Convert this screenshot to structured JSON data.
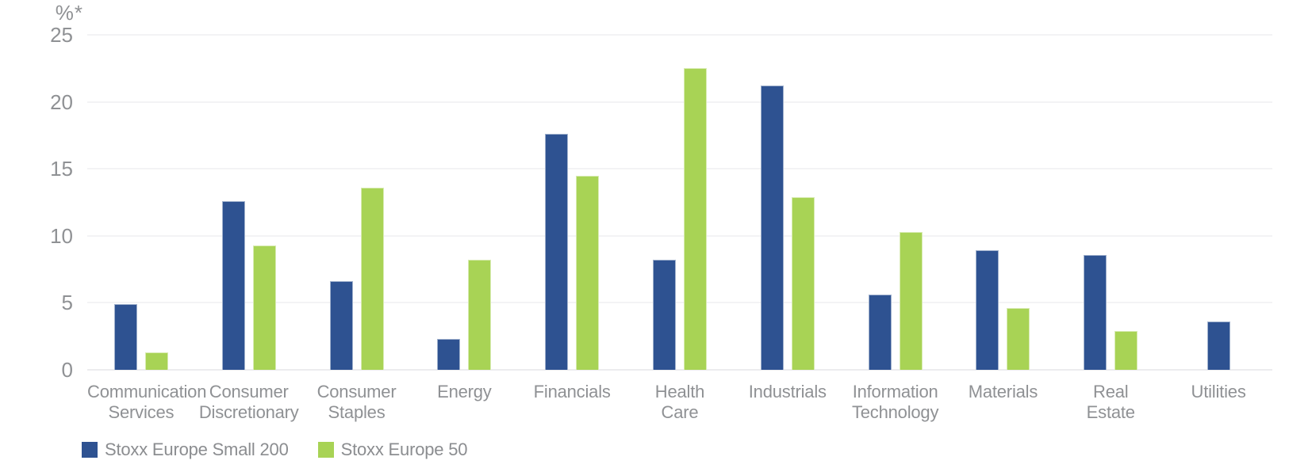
{
  "chart_data": {
    "type": "bar",
    "title": "",
    "unit_label": "%*",
    "ylabel": "",
    "xlabel": "",
    "ylim": [
      0,
      25
    ],
    "y_ticks": [
      0,
      5,
      10,
      15,
      20,
      25
    ],
    "grid": true,
    "legend_position": "bottom-left",
    "categories": [
      "Communication Services",
      "Consumer Discretionary",
      "Consumer Staples",
      "Energy",
      "Financials",
      "Health Care",
      "Industrials",
      "Information Technology",
      "Materials",
      "Real Estate",
      "Utilities"
    ],
    "category_label_lines": [
      [
        "Communication",
        "Services"
      ],
      [
        "Consumer",
        "Discretionary"
      ],
      [
        "Consumer",
        "Staples"
      ],
      [
        "Energy"
      ],
      [
        "Financials"
      ],
      [
        "Health",
        "Care"
      ],
      [
        "Industrials"
      ],
      [
        "Information",
        "Technology"
      ],
      [
        "Materials"
      ],
      [
        "Real",
        "Estate"
      ],
      [
        "Utilities"
      ]
    ],
    "series": [
      {
        "name": "Stoxx Europe Small 200",
        "color": "#2e5291",
        "values": [
          4.9,
          12.6,
          6.6,
          2.3,
          17.6,
          8.2,
          21.2,
          5.6,
          8.9,
          8.6,
          3.6
        ]
      },
      {
        "name": "Stoxx Europe 50",
        "color": "#a8d355",
        "values": [
          1.3,
          9.3,
          13.6,
          8.2,
          14.5,
          22.5,
          12.9,
          10.3,
          4.6,
          2.9,
          null
        ]
      }
    ]
  },
  "colors": {
    "grid": "#f3f3f5",
    "zero_line": "#ececee",
    "tick_text": "#8f9194",
    "legend_text": "#8b8d90",
    "background": "#ffffff"
  }
}
